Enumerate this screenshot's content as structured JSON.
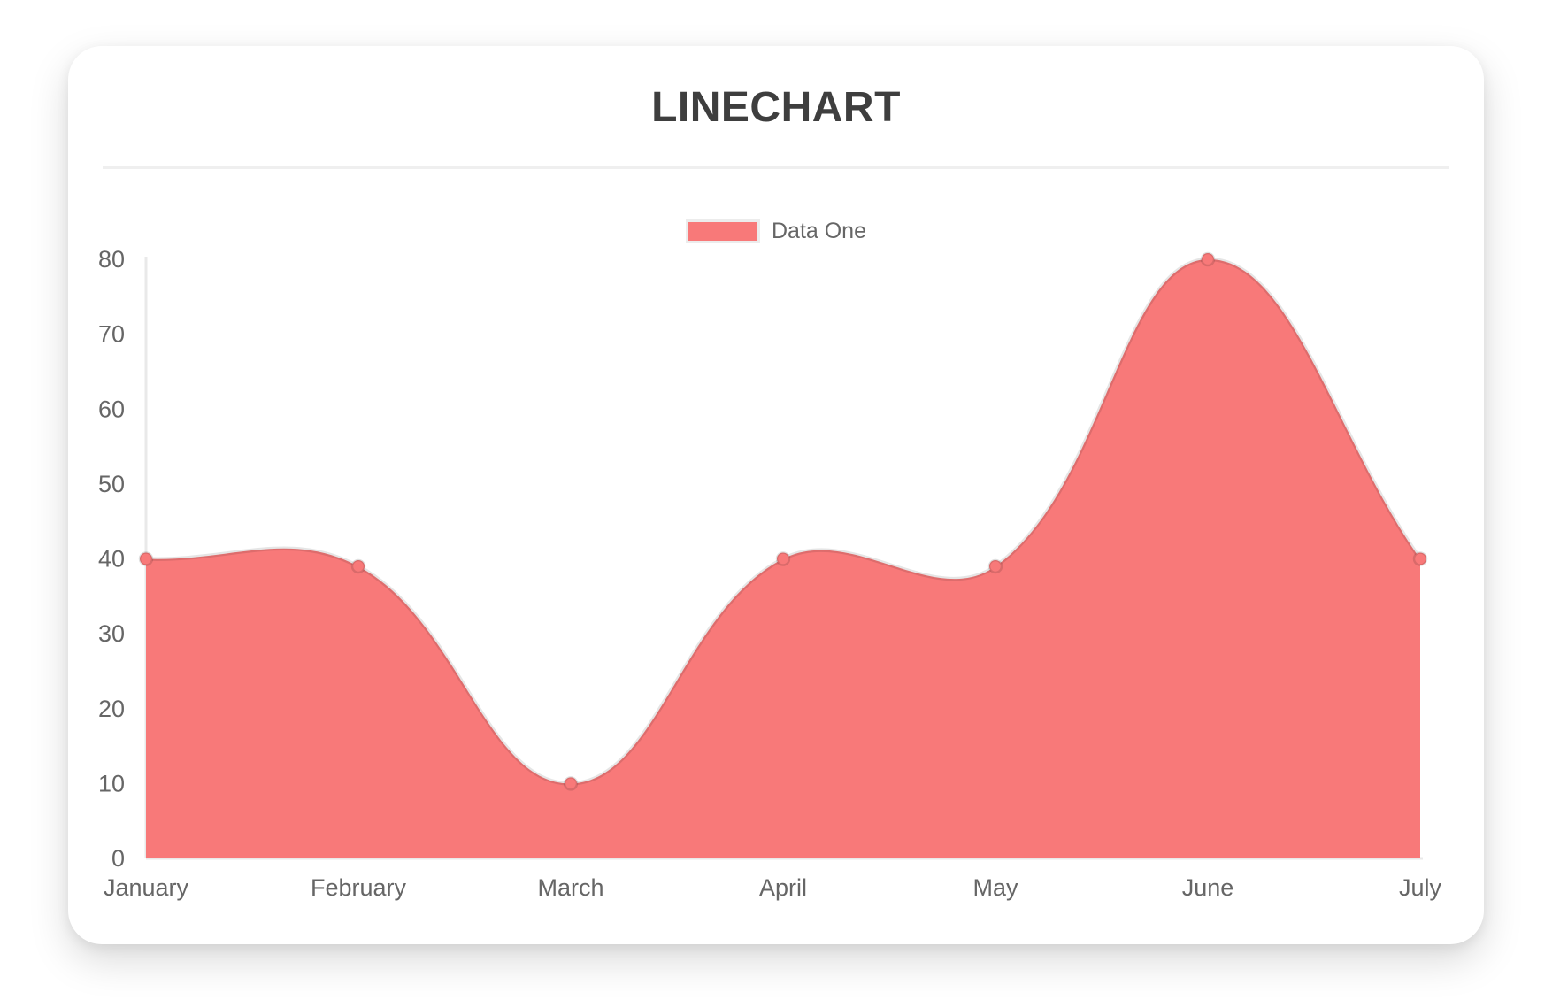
{
  "title": "LINECHART",
  "legend": {
    "label": "Data One",
    "swatch_color": "#f87979",
    "swatch_border_color": "#ececec"
  },
  "chart_data": {
    "type": "line",
    "title": "LINECHART",
    "categories": [
      "January",
      "February",
      "March",
      "April",
      "May",
      "June",
      "July"
    ],
    "series": [
      {
        "name": "Data One",
        "values": [
          40,
          39,
          10,
          40,
          39,
          80,
          40
        ],
        "fill_color": "#f87979",
        "line_color": "rgba(0,0,0,0.10)",
        "point_color": "#f87979",
        "point_border_color": "rgba(0,0,0,0.12)"
      }
    ],
    "xlabel": "",
    "ylabel": "",
    "ylim": [
      0,
      80
    ],
    "ytick_step": 10,
    "ytick_labels": [
      "0",
      "10",
      "20",
      "30",
      "40",
      "50",
      "60",
      "70",
      "80"
    ],
    "grid": false,
    "axis_color": "#e9e9e9",
    "tick_text_color": "#666666",
    "legend_position": "top",
    "smoothing_tension": 0.4,
    "area_fill": true
  }
}
